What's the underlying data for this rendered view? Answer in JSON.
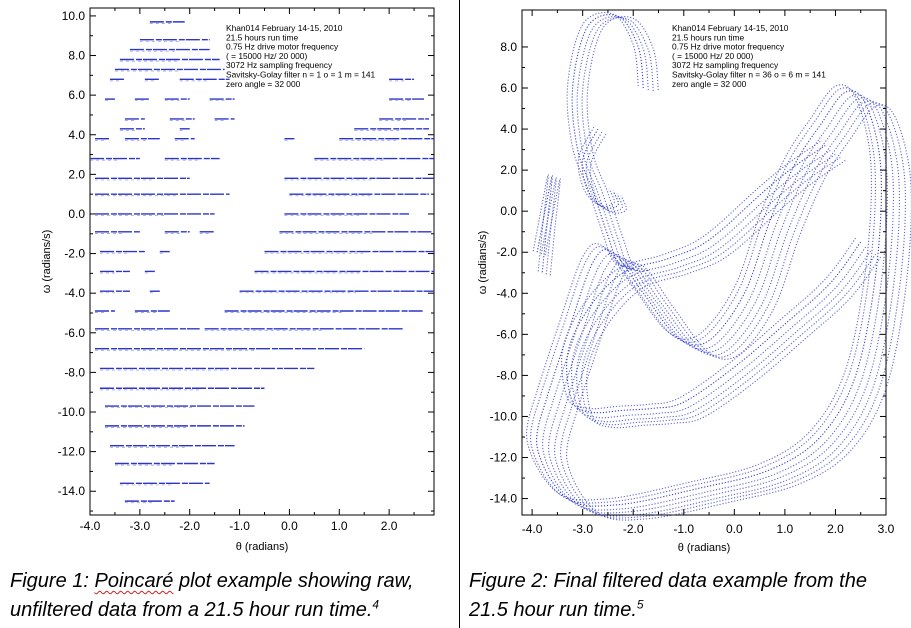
{
  "chart_data": [
    {
      "type": "scatter",
      "id": "fig1",
      "title": "",
      "xlabel": "θ (radians)",
      "ylabel": "ω (radians/s)",
      "xlim": [
        -4.0,
        2.9
      ],
      "ylim": [
        -15.2,
        10.4
      ],
      "xticks": [
        -4.0,
        -3.0,
        -2.0,
        -1.0,
        0.0,
        1.0,
        2.0
      ],
      "xtick_labels": [
        "-4.0",
        "-3.0",
        "-2.0",
        "-1.0",
        "0.0",
        "1.0",
        "2.0"
      ],
      "yticks": [
        10,
        8,
        6,
        4,
        2,
        0,
        -2,
        -4,
        -6,
        -8,
        -10,
        -12,
        -14
      ],
      "ytick_labels": [
        "10.0",
        "8.0",
        "6.0",
        "4.0",
        "2.0",
        "0.0",
        "-2.0",
        "-4.0",
        "-6.0",
        "-8.0",
        "-10.0",
        "-12.0",
        "-14.0"
      ],
      "annotation": [
        "Khan014 February 14-15, 2010",
        "21.5 hours run time",
        "0.75 Hz drive motor frequency",
        "( = 15000 Hz/ 20 000)",
        "3072 Hz sampling frequency",
        "Savitsky-Golay filter  n = 1 o = 1 m = 141",
        "zero angle = 32 000"
      ],
      "series": [
        {
          "name": "raw Poincaré points (horizontal runs: omega, theta_start, theta_end)",
          "segments": [
            [
              9.7,
              -2.8,
              -2.1
            ],
            [
              8.8,
              -3.0,
              -1.6
            ],
            [
              8.3,
              -3.2,
              -1.6
            ],
            [
              7.8,
              -3.4,
              -1.4
            ],
            [
              7.3,
              -3.5,
              -1.3
            ],
            [
              6.8,
              -3.6,
              -3.3
            ],
            [
              6.8,
              -2.9,
              -2.6
            ],
            [
              6.8,
              -2.2,
              -1.2
            ],
            [
              6.8,
              2.0,
              2.5
            ],
            [
              5.8,
              -3.7,
              -3.5
            ],
            [
              5.8,
              -3.1,
              -2.8
            ],
            [
              5.8,
              -2.5,
              -2.0
            ],
            [
              5.8,
              -1.6,
              -1.1
            ],
            [
              5.8,
              2.0,
              2.7
            ],
            [
              4.8,
              -3.3,
              -2.9
            ],
            [
              4.8,
              -2.4,
              -1.9
            ],
            [
              4.8,
              -1.5,
              -1.1
            ],
            [
              4.8,
              1.8,
              2.8
            ],
            [
              4.3,
              -3.4,
              -2.9
            ],
            [
              4.3,
              -2.2,
              -2.0
            ],
            [
              4.3,
              1.3,
              2.8
            ],
            [
              3.8,
              -3.9,
              -3.6
            ],
            [
              3.8,
              -3.3,
              -2.6
            ],
            [
              3.8,
              -2.3,
              -1.9
            ],
            [
              3.8,
              -0.1,
              0.1
            ],
            [
              3.8,
              1.0,
              2.9
            ],
            [
              2.8,
              -4.0,
              -3.0
            ],
            [
              2.8,
              -2.5,
              -1.4
            ],
            [
              2.8,
              0.5,
              2.9
            ],
            [
              1.8,
              -3.9,
              -2.0
            ],
            [
              1.8,
              -0.1,
              2.9
            ],
            [
              1.0,
              -3.9,
              -1.2
            ],
            [
              1.0,
              0.0,
              2.8
            ],
            [
              0.0,
              -3.9,
              -1.5
            ],
            [
              0.0,
              -0.1,
              2.4
            ],
            [
              -0.9,
              -3.9,
              -3.0
            ],
            [
              -0.9,
              -2.5,
              -2.0
            ],
            [
              -0.9,
              -1.8,
              -1.5
            ],
            [
              -0.9,
              -0.2,
              2.9
            ],
            [
              -1.9,
              -3.8,
              -2.9
            ],
            [
              -1.9,
              -2.6,
              -2.4
            ],
            [
              -1.9,
              -0.5,
              2.9
            ],
            [
              -2.9,
              -3.8,
              -3.2
            ],
            [
              -2.9,
              -2.9,
              -2.7
            ],
            [
              -2.9,
              -0.7,
              2.9
            ],
            [
              -3.9,
              -3.8,
              -3.2
            ],
            [
              -3.9,
              -2.8,
              -2.6
            ],
            [
              -3.9,
              -1.0,
              2.9
            ],
            [
              -4.9,
              -3.9,
              -3.5
            ],
            [
              -4.9,
              -3.1,
              -2.4
            ],
            [
              -4.9,
              -1.3,
              2.7
            ],
            [
              -5.8,
              -3.9,
              -1.8
            ],
            [
              -5.8,
              -1.7,
              2.3
            ],
            [
              -6.8,
              -3.9,
              1.5
            ],
            [
              -7.8,
              -3.8,
              0.5
            ],
            [
              -8.8,
              -3.8,
              -0.5
            ],
            [
              -9.7,
              -3.7,
              -0.7
            ],
            [
              -10.7,
              -3.7,
              -0.9
            ],
            [
              -11.7,
              -3.6,
              -1.1
            ],
            [
              -12.6,
              -3.5,
              -1.5
            ],
            [
              -13.6,
              -3.4,
              -1.6
            ],
            [
              -14.5,
              -3.3,
              -2.3
            ]
          ]
        }
      ]
    },
    {
      "type": "scatter",
      "id": "fig2",
      "title": "",
      "xlabel": "θ (radians)",
      "ylabel": "ω (radians/s)",
      "xlim": [
        -4.2,
        3.0
      ],
      "ylim": [
        -14.8,
        9.8
      ],
      "xticks": [
        -4.0,
        -3.0,
        -2.0,
        -1.0,
        0.0,
        1.0,
        2.0,
        3.0
      ],
      "xtick_labels": [
        "-4.0",
        "-3.0",
        "-2.0",
        "-1.0",
        "0.0",
        "1.0",
        "2.0",
        "3.0"
      ],
      "yticks": [
        8,
        6,
        4,
        2,
        0,
        -2,
        -4,
        -6,
        -8,
        -10,
        -12,
        -14
      ],
      "ytick_labels": [
        "8.0",
        "6.0",
        "4.0",
        "2.0",
        "0.0",
        "-2.0",
        "-4.0",
        "-6.0",
        "-8.0",
        "-10.0",
        "-12.0",
        "-14.0"
      ],
      "annotation": [
        "Khan014 February 14-15, 2010",
        "21.5 hours run time",
        "0.75 Hz drive motor frequency",
        "( = 15000 Hz/ 20 000)",
        "3072 Hz sampling frequency",
        "Savitsky-Golay filter  n = 36 o = 6 m = 141",
        "zero angle = 32 000"
      ],
      "series": [
        {
          "name": "filtered attractor (strange attractor band traces)",
          "hook_top": [
            [
              -1.8,
              6.0
            ],
            [
              -1.9,
              8.0
            ],
            [
              -2.3,
              9.5
            ],
            [
              -2.9,
              9.0
            ],
            [
              -3.2,
              6.0
            ],
            [
              -3.1,
              3.0
            ],
            [
              -2.8,
              1.0
            ],
            [
              -2.5,
              -1.2
            ],
            [
              -2.3,
              -2.5
            ],
            [
              -2.0,
              -2.8
            ]
          ],
          "main_band": [
            [
              -3.7,
              -9.0
            ],
            [
              -3.3,
              -6.0
            ],
            [
              -2.8,
              -2.5
            ],
            [
              -2.4,
              -2.0
            ],
            [
              -1.8,
              -4.0
            ],
            [
              -1.1,
              -6.2
            ],
            [
              -0.5,
              -6.3
            ],
            [
              0.2,
              -4.0
            ],
            [
              0.7,
              -0.5
            ],
            [
              1.2,
              2.3
            ],
            [
              1.7,
              4.2
            ],
            [
              2.2,
              5.8
            ],
            [
              2.6,
              5.2
            ],
            [
              2.9,
              2.0
            ],
            [
              2.8,
              -3.0
            ],
            [
              2.4,
              -8.0
            ],
            [
              1.7,
              -11.0
            ],
            [
              0.7,
              -12.6
            ],
            [
              -0.7,
              -13.5
            ],
            [
              -2.3,
              -14.3
            ],
            [
              -3.3,
              -14.0
            ],
            [
              -3.9,
              -11.5
            ],
            [
              -3.7,
              -9.0
            ]
          ],
          "inner_spiral": [
            [
              1.8,
              3.2
            ],
            [
              1.2,
              2.2
            ],
            [
              0.6,
              1.0
            ],
            [
              -0.5,
              -1.4
            ],
            [
              -1.3,
              -2.3
            ],
            [
              -2.2,
              -3.0
            ],
            [
              -2.9,
              -4.8
            ],
            [
              -3.3,
              -7.0
            ],
            [
              -3.2,
              -9.3
            ],
            [
              -2.8,
              -9.8
            ],
            [
              -2.2,
              -9.7
            ],
            [
              -1.6,
              -9.6
            ],
            [
              -1.0,
              -9.3
            ],
            [
              0.0,
              -7.6
            ],
            [
              1.0,
              -5.5
            ],
            [
              1.9,
              -3.5
            ],
            [
              2.5,
              -1.5
            ]
          ],
          "left_loop": [
            [
              -3.9,
              -2.0
            ],
            [
              -3.7,
              0.6
            ],
            [
              -3.6,
              1.7
            ],
            [
              -3.7,
              -0.5
            ],
            [
              -3.8,
              -3.0
            ]
          ],
          "hook_mid": [
            [
              -2.7,
              4.0
            ],
            [
              -3.0,
              2.5
            ],
            [
              -2.9,
              1.0
            ],
            [
              -2.6,
              0.2
            ],
            [
              -2.3,
              0.3
            ],
            [
              -2.4,
              1.0
            ]
          ]
        }
      ]
    }
  ],
  "captions": {
    "fig1_line1_prefix": "Figure 1: ",
    "fig1_line1_word": "Poincaré",
    "fig1_line1_suffix": " plot example showing raw,",
    "fig1_line2": "unfiltered data from a 21.5 hour run time.",
    "fig1_sup": "4",
    "fig2_line1": "Figure 2: Final filtered data example from the",
    "fig2_line2": "21.5 hour run time.",
    "fig2_sup": "5"
  },
  "colors": {
    "points": "#2b35c8",
    "axis": "#000000"
  }
}
